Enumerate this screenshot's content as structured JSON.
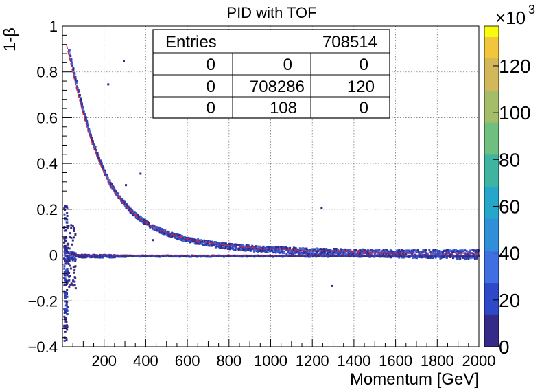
{
  "chart_data": {
    "type": "heatmap",
    "title": "PID with TOF",
    "xlabel": "Momentum [GeV]",
    "ylabel": "1-β",
    "xlim": [
      0,
      2000
    ],
    "ylim": [
      -0.4,
      1.0
    ],
    "x_ticks": [
      "200",
      "400",
      "600",
      "800",
      "1000",
      "1200",
      "1400",
      "1600",
      "1800",
      "2000"
    ],
    "x_tick_values": [
      200,
      400,
      600,
      800,
      1000,
      1200,
      1400,
      1600,
      1800,
      2000
    ],
    "y_ticks": [
      "−0.4",
      "−0.2",
      "0",
      "0.2",
      "0.4",
      "0.6",
      "0.8",
      "1"
    ],
    "y_tick_values": [
      -0.4,
      -0.2,
      0,
      0.2,
      0.4,
      0.6,
      0.8,
      1.0
    ],
    "grid": true,
    "colorbar": {
      "ticks": [
        "0",
        "20",
        "40",
        "60",
        "80",
        "100",
        "120"
      ],
      "tick_values": [
        0,
        20,
        40,
        60,
        80,
        100,
        120
      ],
      "max": 137,
      "exponent_label": "×10",
      "exponent": "3",
      "palette": [
        "#352a87",
        "#2d48c8",
        "#3f6fe0",
        "#2f8fd8",
        "#26a6c8",
        "#3fb4a0",
        "#6fbf7f",
        "#a4bd68",
        "#d2b85a",
        "#f2c63c",
        "#f9fb0e"
      ]
    },
    "stats_box": {
      "entries_label": "Entries",
      "entries_value": "708514",
      "rows": [
        [
          "0",
          "0",
          "0"
        ],
        [
          "0",
          "708286",
          "120"
        ],
        [
          "0",
          "108",
          "0"
        ]
      ]
    },
    "bands": [
      {
        "name": "",
        "curve": "1 - p / sqrt(p^2 + m^2)",
        "mass": 240,
        "x_range": [
          20,
          2000
        ]
      },
      {
        "name": "",
        "curve": "y = 0",
        "x_range": [
          0,
          2000
        ]
      }
    ],
    "fit_line_color": "#e8202a"
  }
}
